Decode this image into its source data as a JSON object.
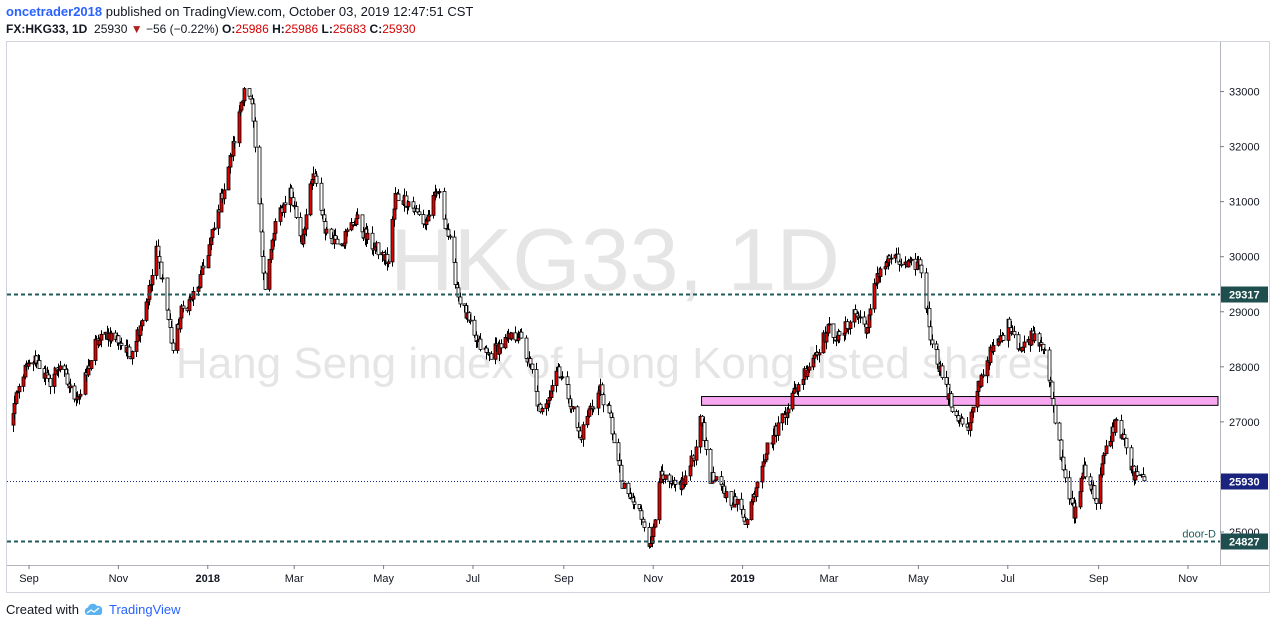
{
  "header": {
    "user": "oncetrader2018",
    "published_text": " published on TradingView.com, October 03, 2019 12:47:51 CST",
    "symbol": "FX:HKG33, 1D",
    "last": "25930",
    "change_arrow": "▼",
    "change": "−56 (−0.22%)",
    "o_label": "O:",
    "o_value": "25986",
    "h_label": "H:",
    "h_value": "25986",
    "l_label": "L:",
    "l_value": "25683",
    "c_label": "C:",
    "c_value": "25930"
  },
  "watermark": {
    "title": "HKG33, 1D",
    "subtitle": "Hang Seng index of Hong Kong listed shares"
  },
  "footer": {
    "created_with": "Created with",
    "brand": "TradingView",
    "logo_icon": "tradingview-cloud-icon"
  },
  "colors": {
    "up": "#e00000",
    "down": "#ffffff",
    "wick": "#000000",
    "level_line": "#1f5b5b",
    "current_line": "#1a237e",
    "zone_fill": "#f7a8f0",
    "price_label_bg": "#1f4e4e",
    "current_label_bg": "#1a237e"
  },
  "chart_data": {
    "type": "candlestick",
    "x_labels": [
      "Sep",
      "Nov",
      "2018",
      "Mar",
      "May",
      "Jul",
      "Sep",
      "Nov",
      "2019",
      "Mar",
      "May",
      "Jul",
      "Sep",
      "Nov"
    ],
    "y_ticks": [
      25000,
      26000,
      27000,
      28000,
      29000,
      30000,
      31000,
      32000,
      33000
    ],
    "ylim": [
      24400,
      33900
    ],
    "path_points": [
      {
        "date": "2017-08-18",
        "price": 26900
      },
      {
        "date": "2017-08-28",
        "price": 27900
      },
      {
        "date": "2017-09-06",
        "price": 28150
      },
      {
        "date": "2017-09-14",
        "price": 27700
      },
      {
        "date": "2017-09-22",
        "price": 28050
      },
      {
        "date": "2017-09-30",
        "price": 27500
      },
      {
        "date": "2017-10-06",
        "price": 27500
      },
      {
        "date": "2017-10-16",
        "price": 28400
      },
      {
        "date": "2017-10-24",
        "price": 28600
      },
      {
        "date": "2017-11-01",
        "price": 28500
      },
      {
        "date": "2017-11-08",
        "price": 28200
      },
      {
        "date": "2017-11-15",
        "price": 28700
      },
      {
        "date": "2017-11-23",
        "price": 29500
      },
      {
        "date": "2017-11-27",
        "price": 30100
      },
      {
        "date": "2017-12-01",
        "price": 29600
      },
      {
        "date": "2017-12-08",
        "price": 28300
      },
      {
        "date": "2017-12-14",
        "price": 29000
      },
      {
        "date": "2017-12-25",
        "price": 29400
      },
      {
        "date": "2018-01-08",
        "price": 30800
      },
      {
        "date": "2018-01-18",
        "price": 32000
      },
      {
        "date": "2018-01-26",
        "price": 33100
      },
      {
        "date": "2018-01-31",
        "price": 32700
      },
      {
        "date": "2018-02-06",
        "price": 30500
      },
      {
        "date": "2018-02-09",
        "price": 29400
      },
      {
        "date": "2018-02-16",
        "price": 30600
      },
      {
        "date": "2018-02-26",
        "price": 31200
      },
      {
        "date": "2018-03-06",
        "price": 30300
      },
      {
        "date": "2018-03-14",
        "price": 31500
      },
      {
        "date": "2018-03-23",
        "price": 30400
      },
      {
        "date": "2018-04-03",
        "price": 30300
      },
      {
        "date": "2018-04-12",
        "price": 30700
      },
      {
        "date": "2018-04-20",
        "price": 30300
      },
      {
        "date": "2018-05-04",
        "price": 29900
      },
      {
        "date": "2018-05-09",
        "price": 31100
      },
      {
        "date": "2018-05-18",
        "price": 31000
      },
      {
        "date": "2018-05-29",
        "price": 30600
      },
      {
        "date": "2018-06-07",
        "price": 31200
      },
      {
        "date": "2018-06-14",
        "price": 30400
      },
      {
        "date": "2018-06-21",
        "price": 29300
      },
      {
        "date": "2018-07-02",
        "price": 28500
      },
      {
        "date": "2018-07-11",
        "price": 28200
      },
      {
        "date": "2018-07-20",
        "price": 28400
      },
      {
        "date": "2018-08-01",
        "price": 28600
      },
      {
        "date": "2018-08-10",
        "price": 27900
      },
      {
        "date": "2018-08-16",
        "price": 27100
      },
      {
        "date": "2018-08-28",
        "price": 28000
      },
      {
        "date": "2018-09-04",
        "price": 27500
      },
      {
        "date": "2018-09-12",
        "price": 26700
      },
      {
        "date": "2018-09-18",
        "price": 27200
      },
      {
        "date": "2018-09-26",
        "price": 27600
      },
      {
        "date": "2018-10-03",
        "price": 27000
      },
      {
        "date": "2018-10-11",
        "price": 25800
      },
      {
        "date": "2018-10-19",
        "price": 25500
      },
      {
        "date": "2018-10-26",
        "price": 25200
      },
      {
        "date": "2018-10-30",
        "price": 24700
      },
      {
        "date": "2018-11-05",
        "price": 26000
      },
      {
        "date": "2018-11-14",
        "price": 25800
      },
      {
        "date": "2018-11-22",
        "price": 25900
      },
      {
        "date": "2018-11-30",
        "price": 26500
      },
      {
        "date": "2018-12-03",
        "price": 27200
      },
      {
        "date": "2018-12-10",
        "price": 26000
      },
      {
        "date": "2018-12-20",
        "price": 25700
      },
      {
        "date": "2018-12-28",
        "price": 25500
      },
      {
        "date": "2019-01-04",
        "price": 25200
      },
      {
        "date": "2019-01-14",
        "price": 26300
      },
      {
        "date": "2019-01-28",
        "price": 27100
      },
      {
        "date": "2019-02-14",
        "price": 28000
      },
      {
        "date": "2019-03-01",
        "price": 28700
      },
      {
        "date": "2019-03-08",
        "price": 28500
      },
      {
        "date": "2019-03-18",
        "price": 29000
      },
      {
        "date": "2019-03-27",
        "price": 28700
      },
      {
        "date": "2019-04-03",
        "price": 29700
      },
      {
        "date": "2019-04-12",
        "price": 30000
      },
      {
        "date": "2019-04-23",
        "price": 29800
      },
      {
        "date": "2019-05-02",
        "price": 29900
      },
      {
        "date": "2019-05-09",
        "price": 28600
      },
      {
        "date": "2019-05-23",
        "price": 27300
      },
      {
        "date": "2019-06-04",
        "price": 26800
      },
      {
        "date": "2019-06-10",
        "price": 27600
      },
      {
        "date": "2019-06-18",
        "price": 28200
      },
      {
        "date": "2019-06-26",
        "price": 28500
      },
      {
        "date": "2019-07-02",
        "price": 28800
      },
      {
        "date": "2019-07-10",
        "price": 28300
      },
      {
        "date": "2019-07-18",
        "price": 28600
      },
      {
        "date": "2019-07-26",
        "price": 28400
      },
      {
        "date": "2019-08-02",
        "price": 27000
      },
      {
        "date": "2019-08-09",
        "price": 26000
      },
      {
        "date": "2019-08-15",
        "price": 25300
      },
      {
        "date": "2019-08-22",
        "price": 26200
      },
      {
        "date": "2019-08-30",
        "price": 25600
      },
      {
        "date": "2019-09-04",
        "price": 26300
      },
      {
        "date": "2019-09-12",
        "price": 27000
      },
      {
        "date": "2019-09-18",
        "price": 26700
      },
      {
        "date": "2019-09-25",
        "price": 26000
      },
      {
        "date": "2019-10-02",
        "price": 25930
      }
    ],
    "horizontal_levels": [
      {
        "price": 29317,
        "label": "29317",
        "style": "dashed"
      },
      {
        "price": 24827,
        "label": "24827",
        "style": "dashed",
        "tag": "door-D"
      },
      {
        "price": 25930,
        "label": "25930",
        "style": "dotted",
        "current": true
      }
    ],
    "zone": {
      "start": "2018-12-04",
      "top": 27460,
      "bottom": 27300
    }
  }
}
